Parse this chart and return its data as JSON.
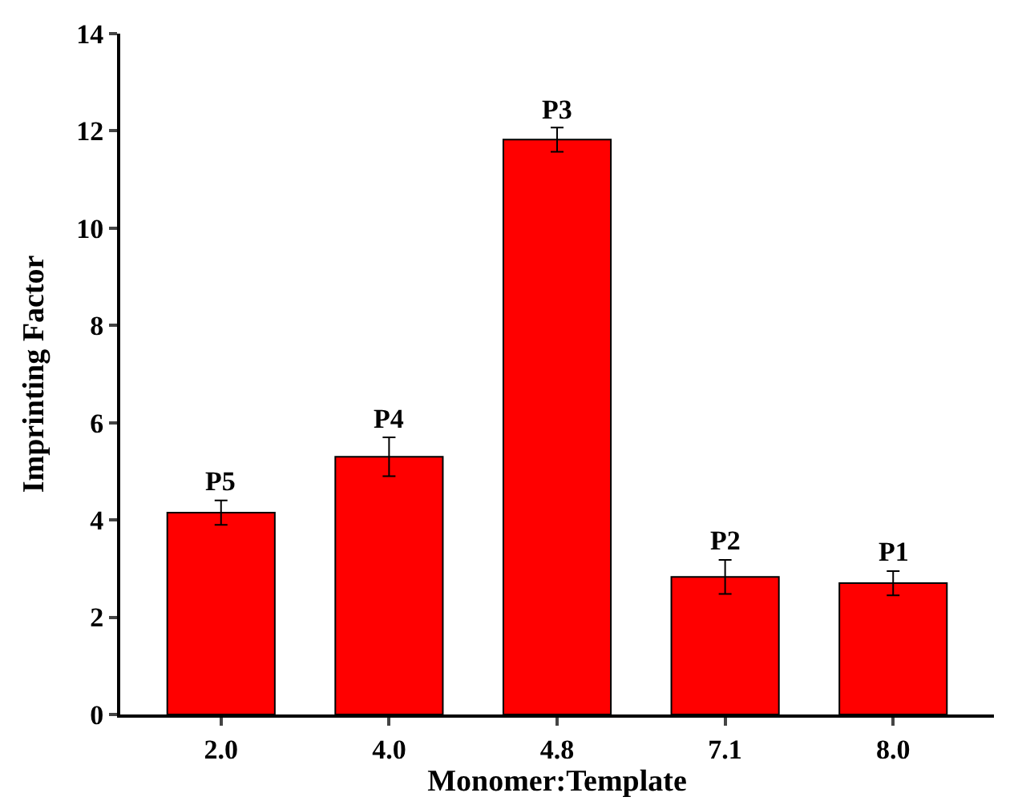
{
  "chart_data": {
    "type": "bar",
    "xlabel": "Monomer:Template",
    "ylabel": "Imprinting Factor",
    "categories": [
      "2.0",
      "4.0",
      "4.8",
      "7.1",
      "8.0"
    ],
    "values": [
      4.15,
      5.3,
      11.82,
      2.83,
      2.7
    ],
    "errors": [
      0.25,
      0.4,
      0.25,
      0.35,
      0.25
    ],
    "color": "#ff0000",
    "ylim": [
      0,
      14
    ],
    "yticks": [
      0,
      2,
      4,
      6,
      8,
      10,
      12,
      14
    ],
    "annotations": [
      {
        "text": "P5",
        "x": "2.0",
        "y": 4.4
      },
      {
        "text": "P4",
        "x": "4.0",
        "y": 5.7
      },
      {
        "text": "P3",
        "x": "4.8",
        "y": 12.07
      },
      {
        "text": "P2",
        "x": "7.1",
        "y": 3.18
      },
      {
        "text": "P1",
        "x": "8.0",
        "y": 2.95
      }
    ]
  }
}
